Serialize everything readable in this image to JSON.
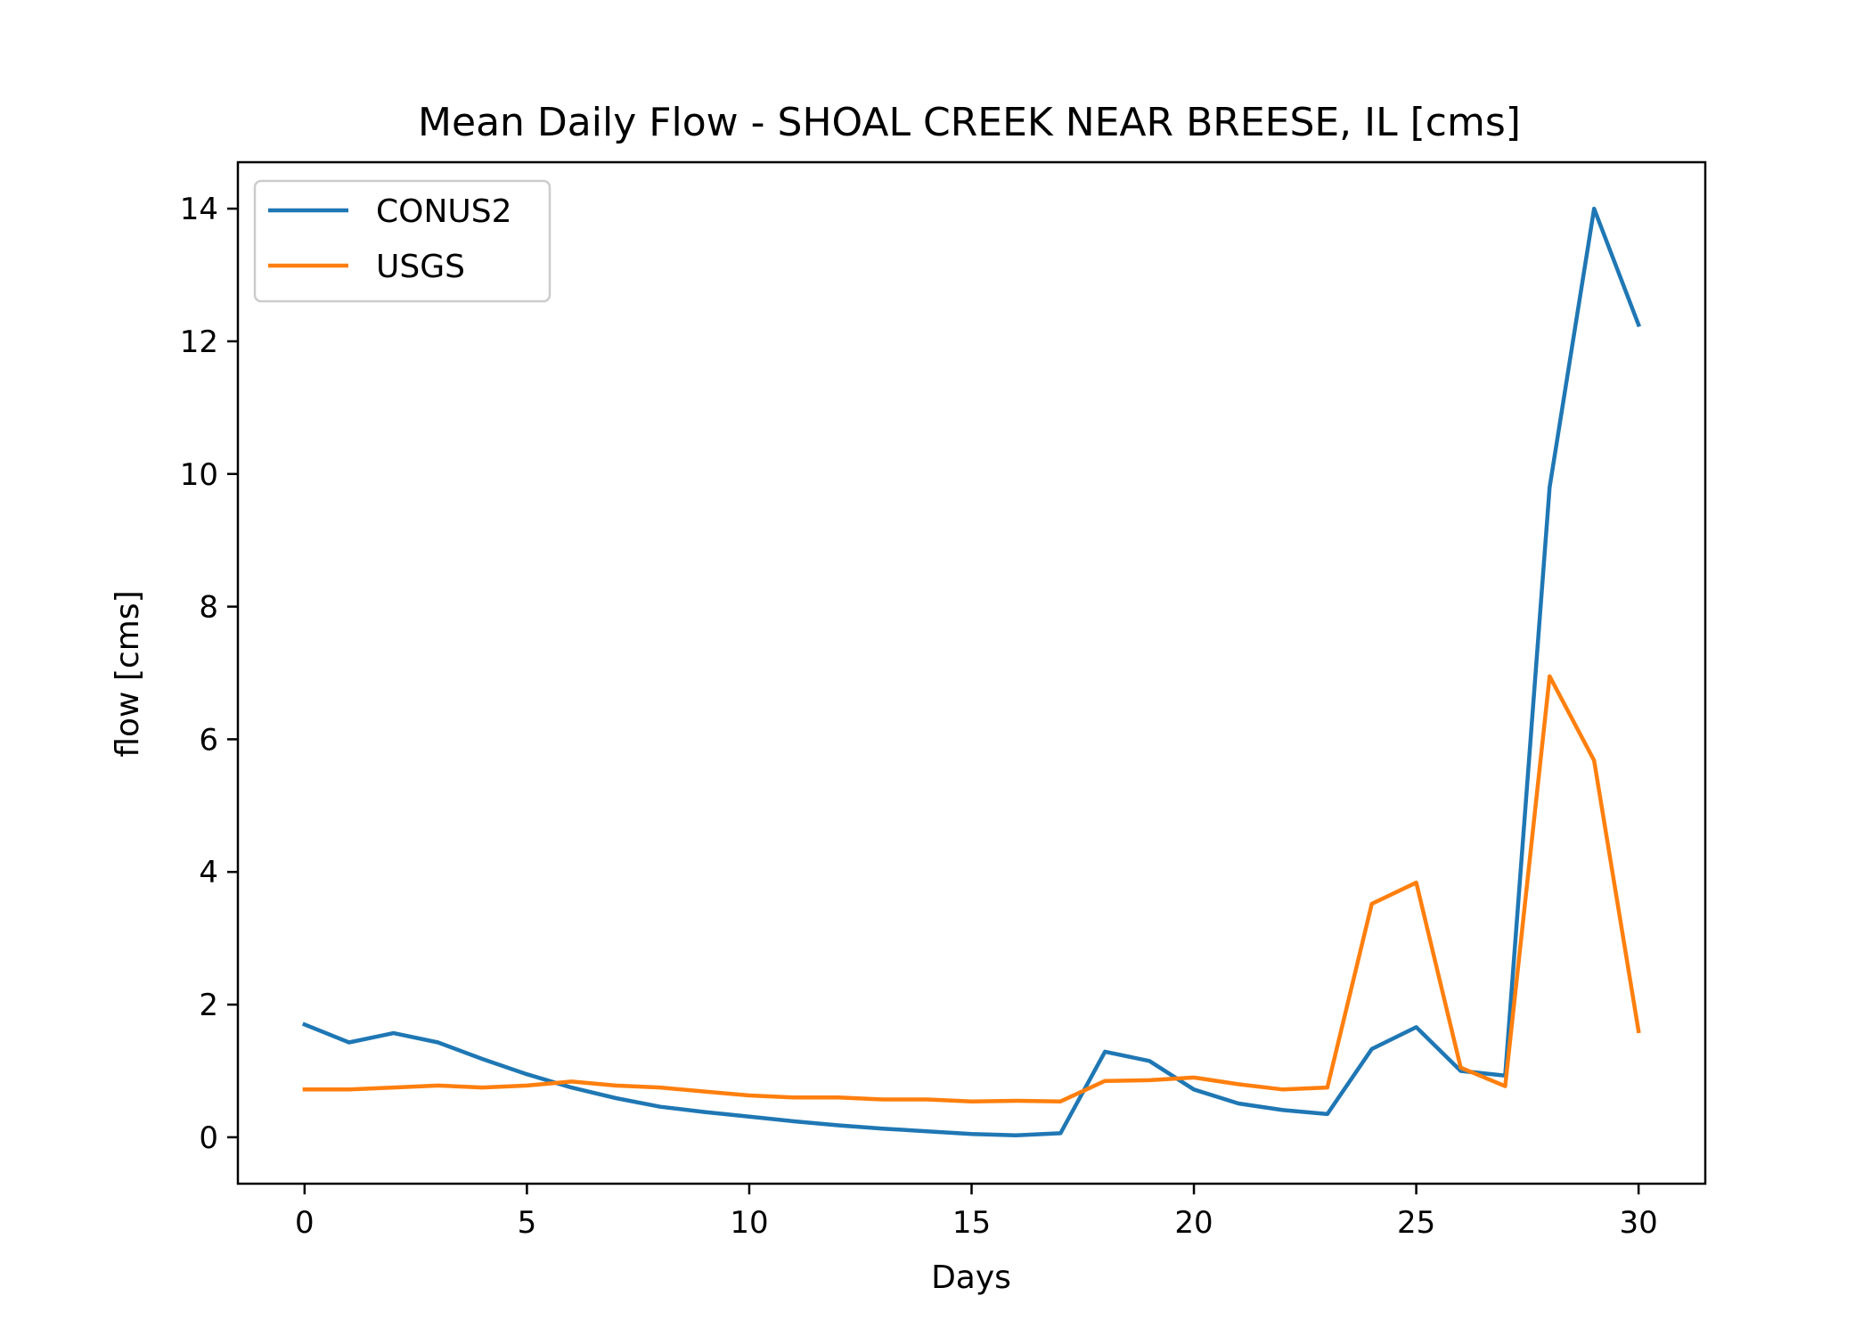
{
  "chart_data": {
    "type": "line",
    "title": "Mean Daily Flow - SHOAL CREEK NEAR BREESE, IL [cms]",
    "xlabel": "Days",
    "ylabel": "flow [cms]",
    "xlim": [
      -1.5,
      31.5
    ],
    "ylim": [
      -0.7,
      14.7
    ],
    "xticks": [
      0,
      5,
      10,
      15,
      20,
      25,
      30
    ],
    "yticks": [
      0,
      2,
      4,
      6,
      8,
      10,
      12,
      14
    ],
    "grid": false,
    "legend_position": "top-left",
    "x": [
      0,
      1,
      2,
      3,
      4,
      5,
      6,
      7,
      8,
      9,
      10,
      11,
      12,
      13,
      14,
      15,
      16,
      17,
      18,
      19,
      20,
      21,
      22,
      23,
      24,
      25,
      26,
      27,
      28,
      29,
      30
    ],
    "series": [
      {
        "name": "CONUS2",
        "color": "#1f77b4",
        "values": [
          1.7,
          1.43,
          1.57,
          1.43,
          1.18,
          0.95,
          0.75,
          0.59,
          0.46,
          0.38,
          0.31,
          0.24,
          0.18,
          0.13,
          0.09,
          0.05,
          0.03,
          0.06,
          1.29,
          1.15,
          0.72,
          0.51,
          0.41,
          0.35,
          1.33,
          1.66,
          1.0,
          0.93,
          9.8,
          14.0,
          12.25
        ]
      },
      {
        "name": "USGS",
        "color": "#ff7f0e",
        "values": [
          0.72,
          0.72,
          0.75,
          0.78,
          0.75,
          0.78,
          0.84,
          0.78,
          0.75,
          0.69,
          0.63,
          0.6,
          0.6,
          0.57,
          0.57,
          0.54,
          0.55,
          0.54,
          0.85,
          0.86,
          0.9,
          0.8,
          0.72,
          0.75,
          3.52,
          3.84,
          1.05,
          0.77,
          6.95,
          5.68,
          1.6
        ]
      }
    ]
  }
}
